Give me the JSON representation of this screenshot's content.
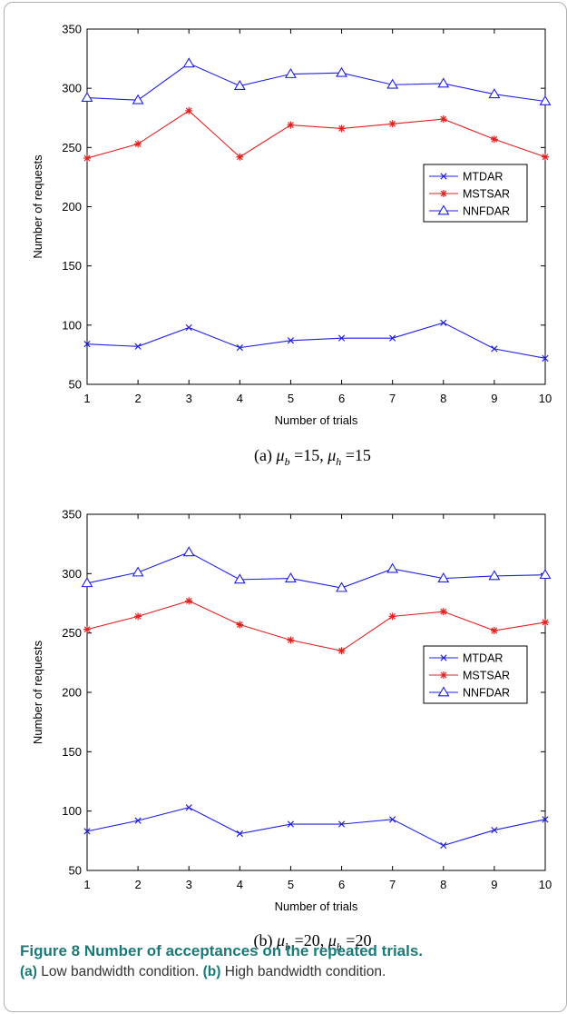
{
  "chart_data": [
    {
      "type": "line",
      "caption_prefix": "(a)",
      "caption_mu_b": "15",
      "caption_mu_h": "15",
      "xlabel": "Number of trials",
      "ylabel": "Number of requests",
      "x": [
        1,
        2,
        3,
        4,
        5,
        6,
        7,
        8,
        9,
        10
      ],
      "xlim": [
        1,
        10
      ],
      "ylim": [
        50,
        350
      ],
      "yticks": [
        50,
        100,
        150,
        200,
        250,
        300,
        350
      ],
      "legend_position": "right-middle",
      "series": [
        {
          "name": "MTDAR",
          "color": "#2020e0",
          "marker": "x",
          "values": [
            84,
            82,
            98,
            81,
            87,
            89,
            89,
            102,
            80,
            72
          ]
        },
        {
          "name": "MSTSAR",
          "color": "#e02020",
          "marker": "asterisk",
          "values": [
            241,
            253,
            281,
            242,
            269,
            266,
            270,
            274,
            257,
            242
          ]
        },
        {
          "name": "NNFDAR",
          "color": "#2020e0",
          "marker": "triangle",
          "values": [
            292,
            290,
            321,
            302,
            312,
            313,
            303,
            304,
            295,
            289
          ]
        }
      ]
    },
    {
      "type": "line",
      "caption_prefix": "(b)",
      "caption_mu_b": "20",
      "caption_mu_h": "20",
      "xlabel": "Number of trials",
      "ylabel": "Number of requests",
      "x": [
        1,
        2,
        3,
        4,
        5,
        6,
        7,
        8,
        9,
        10
      ],
      "xlim": [
        1,
        10
      ],
      "ylim": [
        50,
        350
      ],
      "yticks": [
        50,
        100,
        150,
        200,
        250,
        300,
        350
      ],
      "legend_position": "right-middle",
      "series": [
        {
          "name": "MTDAR",
          "color": "#2020e0",
          "marker": "x",
          "values": [
            83,
            92,
            103,
            81,
            89,
            89,
            93,
            71,
            84,
            93
          ]
        },
        {
          "name": "MSTSAR",
          "color": "#e02020",
          "marker": "asterisk",
          "values": [
            253,
            264,
            277,
            257,
            244,
            235,
            264,
            268,
            252,
            259
          ]
        },
        {
          "name": "NNFDAR",
          "color": "#2020e0",
          "marker": "triangle",
          "values": [
            292,
            301,
            318,
            295,
            296,
            288,
            304,
            296,
            298,
            299
          ]
        }
      ]
    }
  ],
  "figure": {
    "title": "Figure 8 Number of acceptances on the repeated trials.",
    "desc_a_label": "(a)",
    "desc_a_text": " Low bandwidth condition. ",
    "desc_b_label": "(b)",
    "desc_b_text": " High bandwidth condition."
  }
}
